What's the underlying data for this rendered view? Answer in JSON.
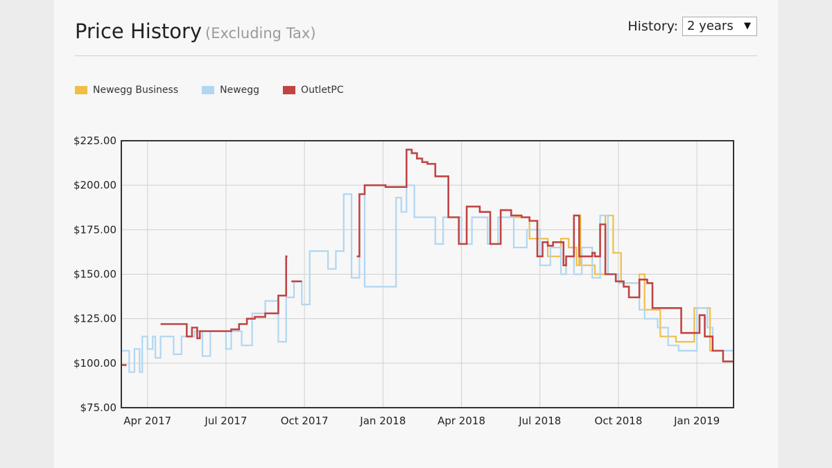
{
  "header": {
    "title": "Price History",
    "subtitle": "(Excluding Tax)",
    "history_label": "History:",
    "history_value": "2 years"
  },
  "colors": {
    "newegg_business": "#f0be46",
    "newegg": "#b0d6f2",
    "outletpc": "#c04444"
  },
  "chart_data": {
    "type": "line",
    "title": "",
    "xlabel": "",
    "ylabel": "",
    "x_unit": "month index (0 = Jan 2017)",
    "xlim": [
      2.0,
      25.4
    ],
    "ylim": [
      75,
      225
    ],
    "grid": true,
    "legend_position": "top-left",
    "y_ticks": [
      {
        "value": 75,
        "label": "$75.00"
      },
      {
        "value": 100,
        "label": "$100.00"
      },
      {
        "value": 125,
        "label": "$125.00"
      },
      {
        "value": 150,
        "label": "$150.00"
      },
      {
        "value": 175,
        "label": "$175.00"
      },
      {
        "value": 200,
        "label": "$200.00"
      },
      {
        "value": 225,
        "label": "$225.00"
      }
    ],
    "x_ticks": [
      {
        "value": 3,
        "label": "Apr 2017"
      },
      {
        "value": 6,
        "label": "Jul 2017"
      },
      {
        "value": 9,
        "label": "Oct 2017"
      },
      {
        "value": 12,
        "label": "Jan 2018"
      },
      {
        "value": 15,
        "label": "Apr 2018"
      },
      {
        "value": 18,
        "label": "Jul 2018"
      },
      {
        "value": 21,
        "label": "Oct 2018"
      },
      {
        "value": 24,
        "label": "Jan 2019"
      }
    ],
    "series": [
      {
        "name": "Newegg Business",
        "color": "#f0be46",
        "points": [
          [
            16.8,
            182
          ],
          [
            17.6,
            170
          ],
          [
            18.3,
            160
          ],
          [
            18.8,
            170
          ],
          [
            19.1,
            165
          ],
          [
            19.4,
            155
          ],
          [
            19.5,
            183
          ],
          [
            19.55,
            155
          ],
          [
            20.1,
            150
          ],
          [
            20.5,
            183
          ],
          [
            20.8,
            162
          ],
          [
            21.1,
            145
          ],
          [
            21.5,
            145
          ],
          [
            21.8,
            150
          ],
          [
            22.0,
            130
          ],
          [
            22.6,
            115
          ],
          [
            23.2,
            112
          ],
          [
            23.7,
            112
          ],
          [
            23.9,
            131
          ],
          [
            24.2,
            131
          ],
          [
            24.5,
            107
          ],
          [
            25.4,
            101
          ]
        ]
      },
      {
        "name": "Newegg",
        "color": "#b0d6f2",
        "points": [
          [
            2.0,
            107
          ],
          [
            2.3,
            95
          ],
          [
            2.5,
            108
          ],
          [
            2.7,
            95
          ],
          [
            2.8,
            115
          ],
          [
            3.0,
            108
          ],
          [
            3.2,
            115
          ],
          [
            3.3,
            103
          ],
          [
            3.5,
            115
          ],
          [
            4.0,
            105
          ],
          [
            4.3,
            115
          ],
          [
            4.8,
            118
          ],
          [
            5.1,
            104
          ],
          [
            5.4,
            118
          ],
          [
            6.0,
            108
          ],
          [
            6.2,
            118
          ],
          [
            6.6,
            110
          ],
          [
            7.0,
            128
          ],
          [
            7.5,
            135
          ],
          [
            8.0,
            112
          ],
          [
            8.3,
            137
          ],
          [
            8.6,
            146
          ],
          [
            8.9,
            133
          ],
          [
            9.2,
            163
          ],
          [
            9.9,
            153
          ],
          [
            10.2,
            163
          ],
          [
            10.5,
            195
          ],
          [
            10.8,
            148
          ],
          [
            11.1,
            195
          ],
          [
            11.3,
            143
          ],
          [
            12.5,
            193
          ],
          [
            12.7,
            185
          ],
          [
            12.9,
            200
          ],
          [
            13.2,
            182
          ],
          [
            14.0,
            167
          ],
          [
            14.3,
            182
          ],
          [
            15.0,
            167
          ],
          [
            15.4,
            182
          ],
          [
            16.0,
            167
          ],
          [
            16.4,
            182
          ],
          [
            17.0,
            165
          ],
          [
            17.5,
            175
          ],
          [
            18.0,
            155
          ],
          [
            18.4,
            165
          ],
          [
            18.8,
            150
          ],
          [
            19.0,
            160
          ],
          [
            19.3,
            150
          ],
          [
            19.6,
            165
          ],
          [
            20.0,
            148
          ],
          [
            20.3,
            183
          ],
          [
            20.6,
            150
          ],
          [
            21.0,
            145
          ],
          [
            21.5,
            145
          ],
          [
            21.8,
            130
          ],
          [
            22.0,
            125
          ],
          [
            22.5,
            120
          ],
          [
            22.9,
            110
          ],
          [
            23.3,
            107
          ],
          [
            23.8,
            107
          ],
          [
            24.0,
            131
          ],
          [
            24.4,
            120
          ],
          [
            24.6,
            107
          ],
          [
            25.4,
            101
          ]
        ]
      },
      {
        "name": "OutletPC",
        "color": "#c04444",
        "points": [
          [
            2.0,
            99
          ],
          [
            2.2,
            null
          ],
          [
            3.5,
            122
          ],
          [
            4.2,
            122
          ],
          [
            4.5,
            115
          ],
          [
            4.7,
            120
          ],
          [
            4.9,
            114
          ],
          [
            5.0,
            118
          ],
          [
            6.2,
            119
          ],
          [
            6.5,
            122
          ],
          [
            6.8,
            125
          ],
          [
            7.1,
            126
          ],
          [
            7.5,
            128
          ],
          [
            8.0,
            138
          ],
          [
            8.3,
            138
          ],
          [
            8.3,
            160
          ],
          [
            8.35,
            null
          ],
          [
            8.5,
            146
          ],
          [
            8.85,
            146
          ],
          [
            8.9,
            null
          ],
          [
            11.0,
            160
          ],
          [
            11.1,
            195
          ],
          [
            11.3,
            200
          ],
          [
            12.1,
            200
          ],
          [
            12.1,
            199
          ],
          [
            12.7,
            199
          ],
          [
            12.9,
            220
          ],
          [
            13.1,
            218
          ],
          [
            13.3,
            215
          ],
          [
            13.5,
            213
          ],
          [
            13.7,
            212
          ],
          [
            14.0,
            205
          ],
          [
            14.5,
            182
          ],
          [
            14.9,
            167
          ],
          [
            15.2,
            188
          ],
          [
            15.7,
            185
          ],
          [
            16.1,
            167
          ],
          [
            16.5,
            186
          ],
          [
            16.9,
            183
          ],
          [
            17.3,
            182
          ],
          [
            17.6,
            180
          ],
          [
            17.9,
            160
          ],
          [
            18.1,
            168
          ],
          [
            18.3,
            166
          ],
          [
            18.5,
            168
          ],
          [
            18.9,
            155
          ],
          [
            19.0,
            160
          ],
          [
            19.3,
            183
          ],
          [
            19.5,
            160
          ],
          [
            19.8,
            160
          ],
          [
            20.0,
            162
          ],
          [
            20.1,
            160
          ],
          [
            20.3,
            178
          ],
          [
            20.5,
            150
          ],
          [
            20.9,
            146
          ],
          [
            21.2,
            143
          ],
          [
            21.4,
            137
          ],
          [
            21.8,
            147
          ],
          [
            22.1,
            145
          ],
          [
            22.3,
            131
          ],
          [
            22.8,
            131
          ],
          [
            23.4,
            117
          ],
          [
            23.8,
            117
          ],
          [
            24.1,
            127
          ],
          [
            24.3,
            115
          ],
          [
            24.6,
            107
          ],
          [
            25.0,
            101
          ],
          [
            25.4,
            101
          ]
        ]
      }
    ]
  }
}
